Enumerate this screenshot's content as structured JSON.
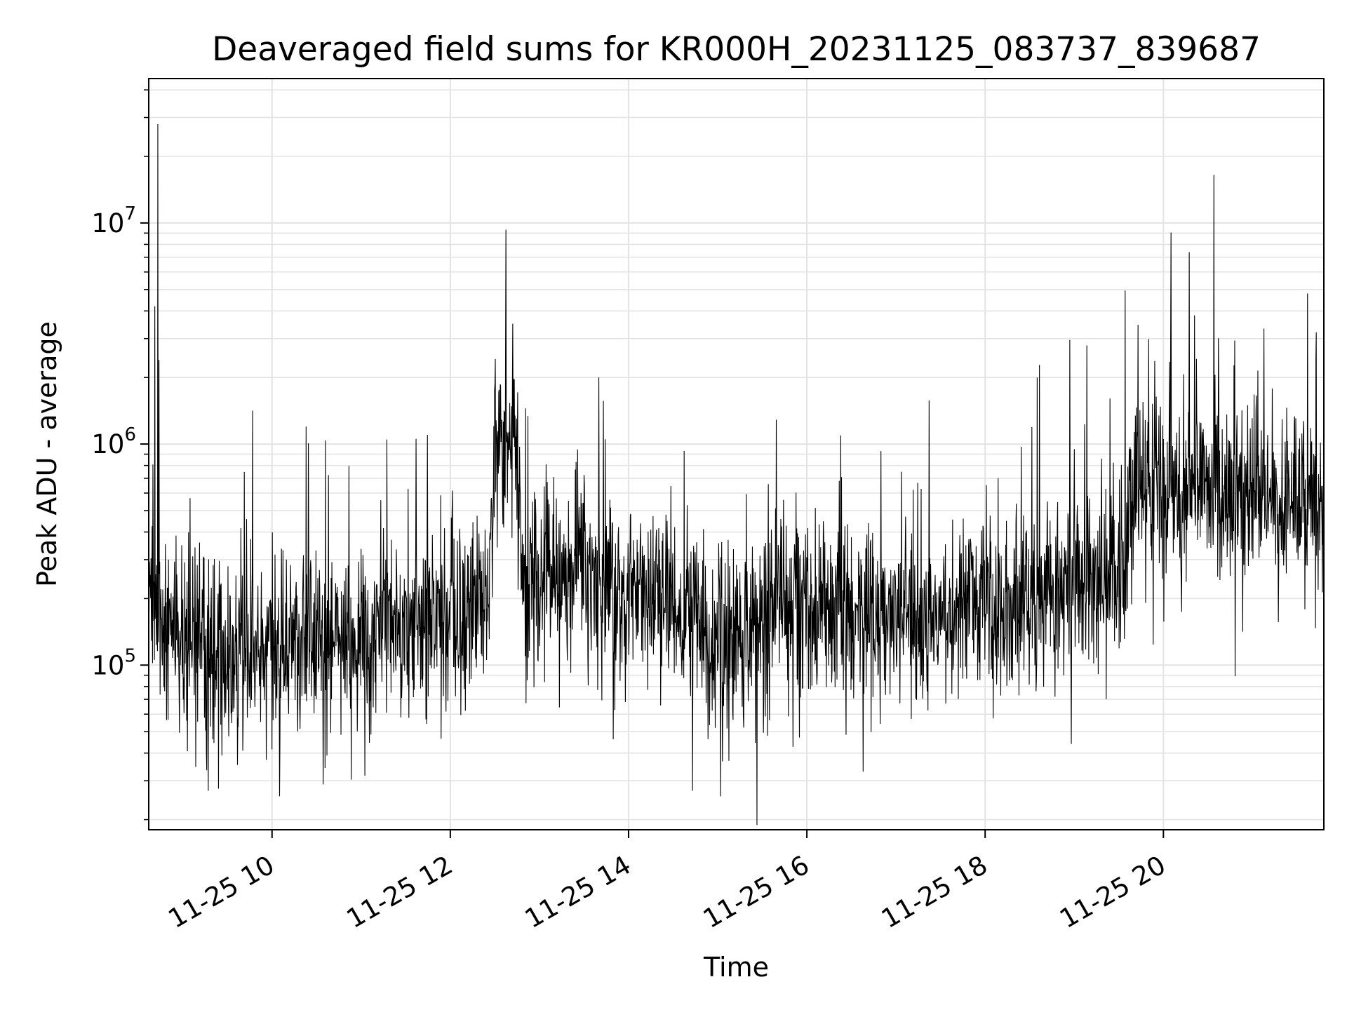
{
  "chart_data": {
    "type": "line",
    "title": "Deaveraged field sums for KR000H_20231125_083737_839687",
    "xlabel": "Time",
    "ylabel": "Peak ADU - average",
    "y_scale": "log",
    "xlim": [
      "2023-11-25T08:37",
      "2023-11-25T21:48"
    ],
    "ylim": [
      18000,
      45000000
    ],
    "x_ticks": [
      {
        "value": "2023-11-25T10:00",
        "label": "11-25 10"
      },
      {
        "value": "2023-11-25T12:00",
        "label": "11-25 12"
      },
      {
        "value": "2023-11-25T14:00",
        "label": "11-25 14"
      },
      {
        "value": "2023-11-25T16:00",
        "label": "11-25 16"
      },
      {
        "value": "2023-11-25T18:00",
        "label": "11-25 18"
      },
      {
        "value": "2023-11-25T20:00",
        "label": "11-25 20"
      }
    ],
    "y_ticks": [
      {
        "value": 100000,
        "mantissa": "10",
        "exponent": "5"
      },
      {
        "value": 1000000,
        "mantissa": "10",
        "exponent": "6"
      },
      {
        "value": 10000000,
        "mantissa": "10",
        "exponent": "7"
      }
    ],
    "grid": true,
    "line_color": "#000000",
    "baseline_trend": [
      {
        "x": "2023-11-25T08:37",
        "y": 200000
      },
      {
        "x": "2023-11-25T08:50",
        "y": 150000
      },
      {
        "x": "2023-11-25T09:30",
        "y": 110000
      },
      {
        "x": "2023-11-25T10:30",
        "y": 120000
      },
      {
        "x": "2023-11-25T11:30",
        "y": 150000
      },
      {
        "x": "2023-11-25T12:25",
        "y": 200000
      },
      {
        "x": "2023-11-25T12:30",
        "y": 900000
      },
      {
        "x": "2023-11-25T12:45",
        "y": 900000
      },
      {
        "x": "2023-11-25T12:50",
        "y": 220000
      },
      {
        "x": "2023-11-25T13:30",
        "y": 260000
      },
      {
        "x": "2023-11-25T14:00",
        "y": 230000
      },
      {
        "x": "2023-11-25T15:00",
        "y": 130000
      },
      {
        "x": "2023-11-25T16:00",
        "y": 200000
      },
      {
        "x": "2023-11-25T17:00",
        "y": 160000
      },
      {
        "x": "2023-11-25T18:00",
        "y": 180000
      },
      {
        "x": "2023-11-25T19:00",
        "y": 250000
      },
      {
        "x": "2023-11-25T19:35",
        "y": 300000
      },
      {
        "x": "2023-11-25T19:40",
        "y": 650000
      },
      {
        "x": "2023-11-25T21:00",
        "y": 600000
      },
      {
        "x": "2023-11-25T21:20",
        "y": 550000
      },
      {
        "x": "2023-11-25T21:48",
        "y": 500000
      }
    ],
    "notable_spikes": [
      {
        "x": "2023-11-25T08:43",
        "y": 28000000
      },
      {
        "x": "2023-11-25T08:41",
        "y": 4200000
      },
      {
        "x": "2023-11-25T08:44",
        "y": 2400000
      },
      {
        "x": "2023-11-25T10:23",
        "y": 1200000
      },
      {
        "x": "2023-11-25T12:42",
        "y": 3500000
      },
      {
        "x": "2023-11-25T13:40",
        "y": 2000000
      },
      {
        "x": "2023-11-25T18:35",
        "y": 2000000
      },
      {
        "x": "2023-11-25T20:05",
        "y": 3200000
      },
      {
        "x": "2023-11-25T20:34",
        "y": 16500000
      },
      {
        "x": "2023-11-25T21:37",
        "y": 4800000
      },
      {
        "x": "2023-11-25T21:43",
        "y": 3200000
      }
    ],
    "notable_dips": [
      {
        "x": "2023-11-25T09:17",
        "y": 27000
      },
      {
        "x": "2023-11-25T10:05",
        "y": 25500
      },
      {
        "x": "2023-11-25T14:43",
        "y": 27000
      },
      {
        "x": "2023-11-25T15:02",
        "y": 25500
      },
      {
        "x": "2023-11-25T16:38",
        "y": 33000
      },
      {
        "x": "2023-11-25T18:58",
        "y": 44000
      }
    ]
  }
}
